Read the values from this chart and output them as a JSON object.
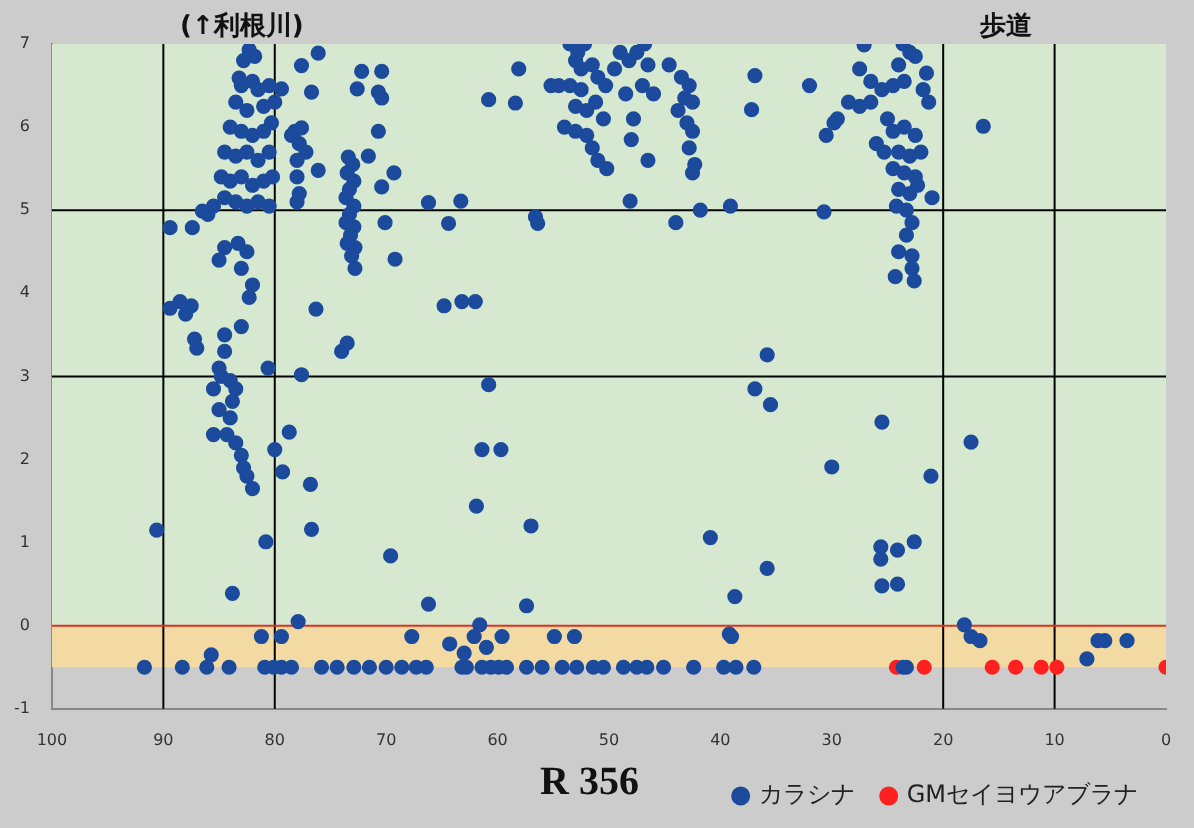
{
  "chart_data": {
    "type": "scatter",
    "annotations": [
      "(↑利根川)",
      "歩道",
      "R 356"
    ],
    "xlim": [
      100,
      0
    ],
    "xticks": [
      100,
      90,
      80,
      70,
      60,
      50,
      40,
      30,
      20,
      10,
      0
    ],
    "ylim": [
      -1,
      7
    ],
    "yticks": [
      -1,
      0,
      1,
      2,
      3,
      4,
      5,
      6,
      7
    ],
    "grid": false,
    "legend": "bottom",
    "marker": "circle",
    "bands": [
      {
        "axis": "y",
        "from": 0,
        "to": 7,
        "color": "#d6e9d0"
      },
      {
        "axis": "y",
        "from": -0.5,
        "to": 0,
        "color": "#f3d9a2"
      }
    ],
    "ref_lines": [
      {
        "axis": "x",
        "value": 90,
        "color": "#000000"
      },
      {
        "axis": "x",
        "value": 80,
        "color": "#000000"
      },
      {
        "axis": "x",
        "value": 20,
        "color": "#000000"
      },
      {
        "axis": "x",
        "value": 10,
        "color": "#000000"
      },
      {
        "axis": "y",
        "value": 5,
        "color": "#000000"
      },
      {
        "axis": "y",
        "value": 3,
        "color": "#000000"
      },
      {
        "axis": "y",
        "value": 0,
        "color": "#e03020"
      }
    ],
    "series": [
      {
        "name": "カラシナ",
        "color": "#1c4a9c",
        "x": [
          82.3,
          76.1,
          77.6,
          72.2,
          70.4,
          83.2,
          76.7,
          72.6,
          70.7,
          70.4,
          79.4,
          70.7,
          76.1,
          71.6,
          69.3,
          70.4,
          66.2,
          63.3,
          64.4,
          70.1,
          69.2,
          72.8,
          60.8,
          58.4,
          58.1,
          55.2,
          48.1,
          56.6,
          56.4,
          90.6,
          89.4,
          87.4,
          86.5,
          80.6,
          80.0,
          79.3,
          78.7,
          77.6,
          76.3,
          76.8,
          76.7,
          80.8,
          83.8,
          77.9,
          74.0,
          73.5,
          69.6,
          64.8,
          63.2,
          62.0,
          60.8,
          61.4,
          59.7,
          61.9,
          57.0,
          66.2,
          57.4,
          61.6,
          16.4,
          36.9,
          32.0,
          37.2,
          30.7,
          39.1,
          41.8,
          44.0,
          35.8,
          36.9,
          35.5,
          25.5,
          17.5,
          30.0,
          21.1,
          40.9,
          35.8,
          38.7,
          25.6,
          25.6,
          24.1,
          22.6,
          25.5,
          24.1,
          39.2,
          18.1,
          83,
          82,
          81.5,
          80.5,
          83.5,
          82.5,
          81,
          80,
          84,
          83,
          82,
          81,
          80.3,
          84.5,
          83.5,
          82.5,
          81.5,
          80.5,
          84.8,
          84,
          83,
          82,
          81,
          80.2,
          84.5,
          83.5,
          82.5,
          81.5,
          80.5,
          85.5,
          86,
          82.8,
          81.8,
          83.3,
          82.5,
          84.5,
          83,
          85,
          82,
          82.3,
          83,
          84.5,
          84.5,
          85,
          84,
          85.5,
          83.5,
          85,
          84,
          84.3,
          83.5,
          83,
          82.8,
          82.5,
          82,
          84.8,
          83.8,
          85.5,
          89.4,
          88.5,
          87.5,
          88,
          87,
          87.2,
          78.2,
          77.6,
          78.5,
          77.8,
          78,
          78,
          77.8,
          78,
          77.2,
          73.4,
          73,
          73.5,
          72.9,
          73.3,
          73.6,
          72.9,
          73.3,
          73.6,
          72.9,
          73.2,
          73.5,
          72.8,
          73.1,
          53.5,
          52.8,
          52.2,
          53,
          52.5,
          51.5,
          54.5,
          53.5,
          52.5,
          51,
          50.3,
          53,
          52,
          51.2,
          50.5,
          54,
          53,
          52,
          51.5,
          51,
          50.2,
          49.5,
          49,
          48.2,
          48.5,
          47.5,
          46.8,
          46.5,
          47,
          46,
          44.6,
          43.5,
          42.8,
          43.2,
          42.5,
          43.8,
          43,
          42.5,
          42.8,
          42.3,
          42.5,
          47.8,
          48,
          46.5,
          27.1,
          23.6,
          23,
          22.5,
          24,
          27.5,
          26.5,
          25.5,
          24.5,
          23.5,
          21.5,
          21.8,
          21.3,
          28.5,
          27.5,
          26.5,
          25,
          24.5,
          23.5,
          22.5,
          29.5,
          26,
          25.3,
          24,
          23,
          22,
          24.5,
          23.5,
          22.5,
          24,
          23,
          22.3,
          24.2,
          23.3,
          21,
          22.8,
          23.3,
          24,
          22.8,
          24.3,
          22.6,
          22.8,
          30.5,
          29.8,
          91.7,
          88.3,
          86.1,
          84.1,
          80.9,
          80.1,
          79.4,
          78.5,
          75.8,
          74.4,
          72.9,
          71.5,
          70.0,
          68.6,
          67.3,
          66.4,
          63.2,
          62.8,
          61.4,
          60.6,
          59.9,
          59.2,
          57.4,
          56.0,
          54.2,
          52.9,
          51.4,
          50.5,
          48.7,
          47.5,
          46.6,
          45.1,
          42.4,
          39.7,
          38.6,
          37.0,
          23.6,
          23.3,
          85.7,
          64.3,
          63.0,
          61.0,
          16.7,
          7.1,
          6.1,
          5.5,
          3.5,
          81.2,
          79.4,
          67.7,
          62.1,
          59.6,
          54.9,
          53.1,
          39.0,
          17.5
        ],
        "values": [
          6.93,
          6.89,
          6.74,
          6.67,
          6.67,
          6.59,
          6.42,
          6.46,
          6.42,
          6.35,
          6.46,
          5.95,
          5.48,
          5.65,
          5.45,
          5.28,
          5.09,
          5.11,
          4.84,
          4.85,
          4.41,
          4.3,
          6.33,
          6.29,
          6.7,
          6.5,
          5.11,
          4.92,
          4.84,
          1.15,
          4.79,
          4.79,
          4.99,
          3.1,
          2.12,
          1.85,
          2.33,
          3.02,
          3.81,
          1.7,
          1.16,
          1.01,
          0.39,
          0.05,
          3.3,
          3.4,
          0.84,
          3.85,
          3.9,
          3.9,
          2.9,
          2.12,
          2.12,
          1.44,
          1.2,
          0.26,
          0.24,
          0.01,
          6.01,
          6.62,
          6.5,
          6.21,
          4.98,
          5.05,
          5.0,
          4.85,
          3.26,
          2.85,
          2.66,
          2.45,
          2.21,
          1.91,
          1.8,
          1.06,
          0.69,
          0.35,
          0.95,
          0.8,
          0.91,
          1.01,
          0.48,
          0.5,
          -0.1,
          0.01,
          6.5,
          6.55,
          6.45,
          6.5,
          6.3,
          6.2,
          6.25,
          6.3,
          6.0,
          5.95,
          5.9,
          5.95,
          6.05,
          5.7,
          5.65,
          5.7,
          5.6,
          5.7,
          5.4,
          5.35,
          5.4,
          5.3,
          5.35,
          5.4,
          5.15,
          5.1,
          5.05,
          5.1,
          5.05,
          5.05,
          4.95,
          6.8,
          6.85,
          4.6,
          4.5,
          4.55,
          4.3,
          4.4,
          4.1,
          3.95,
          3.6,
          3.5,
          3.3,
          3.1,
          2.95,
          2.85,
          2.85,
          2.6,
          2.5,
          2.3,
          2.2,
          2.05,
          1.9,
          1.8,
          1.65,
          3.0,
          2.7,
          2.3,
          3.82,
          3.9,
          3.85,
          3.75,
          3.34,
          3.45,
          5.95,
          5.99,
          5.9,
          5.8,
          5.6,
          5.4,
          5.2,
          5.1,
          5.7,
          5.64,
          5.55,
          5.45,
          5.35,
          5.25,
          5.15,
          5.05,
          4.95,
          4.85,
          4.8,
          4.7,
          4.6,
          4.55,
          4.45,
          7.0,
          6.9,
          7.0,
          6.8,
          6.7,
          6.75,
          6.5,
          6.5,
          6.45,
          6.6,
          6.5,
          6.25,
          6.2,
          6.3,
          6.1,
          6.0,
          5.95,
          5.9,
          5.75,
          5.6,
          5.5,
          6.7,
          6.9,
          6.8,
          6.4,
          6.9,
          7.0,
          6.75,
          6.5,
          6.4,
          6.75,
          6.6,
          6.5,
          6.35,
          6.3,
          6.2,
          6.05,
          5.95,
          5.75,
          5.55,
          5.45,
          6.1,
          5.85,
          5.6,
          6.99,
          7.0,
          6.9,
          6.85,
          6.75,
          6.7,
          6.55,
          6.45,
          6.5,
          6.55,
          6.65,
          6.45,
          6.3,
          6.3,
          6.25,
          6.3,
          6.1,
          5.95,
          6.0,
          5.9,
          6.1,
          5.8,
          5.7,
          5.7,
          5.65,
          5.7,
          5.5,
          5.45,
          5.4,
          5.25,
          5.2,
          5.3,
          5.05,
          5.0,
          5.15,
          4.85,
          4.7,
          4.5,
          4.45,
          4.2,
          4.15,
          4.3,
          5.9,
          6.05,
          -0.5,
          -0.5,
          -0.5,
          -0.5,
          -0.5,
          -0.5,
          -0.5,
          -0.5,
          -0.5,
          -0.5,
          -0.5,
          -0.5,
          -0.5,
          -0.5,
          -0.5,
          -0.5,
          -0.5,
          -0.5,
          -0.5,
          -0.5,
          -0.5,
          -0.5,
          -0.5,
          -0.5,
          -0.5,
          -0.5,
          -0.5,
          -0.5,
          -0.5,
          -0.5,
          -0.5,
          -0.5,
          -0.5,
          -0.5,
          -0.5,
          -0.5,
          -0.5,
          -0.5,
          -0.35,
          -0.22,
          -0.33,
          -0.26,
          -0.18,
          -0.4,
          -0.18,
          -0.18,
          -0.18,
          -0.13,
          -0.13,
          -0.13,
          -0.13,
          -0.13,
          -0.13,
          -0.13,
          -0.13,
          -0.13
        ]
      },
      {
        "name": "GMセイヨウアブラナ",
        "color": "#ff2020",
        "x": [
          24.2,
          21.7,
          15.6,
          13.5,
          11.2,
          9.8,
          0
        ],
        "values": [
          -0.5,
          -0.5,
          -0.5,
          -0.5,
          -0.5,
          -0.5,
          -0.5
        ]
      }
    ]
  }
}
